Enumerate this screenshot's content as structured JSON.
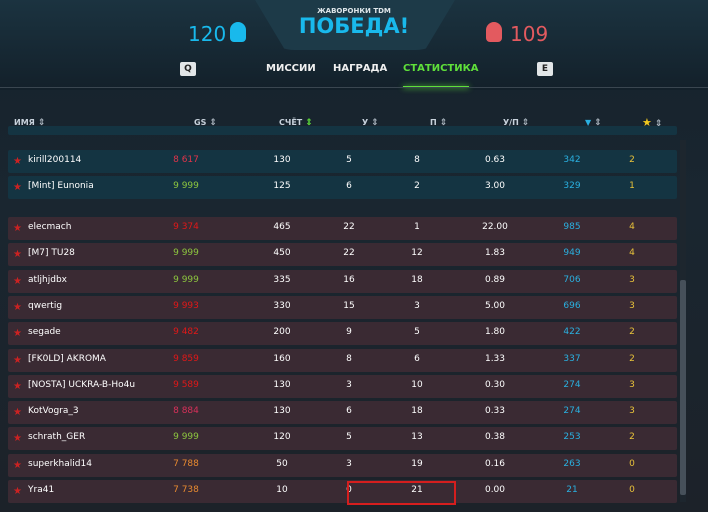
{
  "header": {
    "mode": "ЖАВОРОНКИ TDM",
    "result": "ПОБЕДА!",
    "ally_score": "120",
    "enemy_score": "109"
  },
  "tabs": {
    "prev_key": "Q",
    "next_key": "E",
    "items": [
      {
        "label": "МИССИИ"
      },
      {
        "label": "НАГРАДА"
      },
      {
        "label": "СТАТИСТИКА",
        "active": true
      }
    ]
  },
  "columns": {
    "name": "ИМЯ",
    "gs": "GS",
    "score": "СЧЁТ",
    "kills": "У",
    "deaths": "П",
    "kd": "У/П",
    "gem": "diamond-icon",
    "star": "star-icon"
  },
  "colors": {
    "ally": "#19b9ec",
    "enemy": "#e35a5f",
    "active_tab": "#5fe03a",
    "gem": "#2ab0e0",
    "star": "#e8c23a"
  },
  "ally_rows": [
    {
      "name": "kirill200114",
      "gs": "8 617",
      "gs_color": "#e0344a",
      "score": "130",
      "kills": "5",
      "deaths": "8",
      "kd": "0.63",
      "gems": "342",
      "stars": "2"
    },
    {
      "name": "[Mint] Eunonia",
      "gs": "9 999",
      "gs_color": "#8dc63f",
      "score": "125",
      "kills": "6",
      "deaths": "2",
      "kd": "3.00",
      "gems": "329",
      "stars": "1"
    }
  ],
  "enemy_rows": [
    {
      "name": "elecmach",
      "gs": "9 374",
      "gs_color": "#e01818",
      "score": "465",
      "kills": "22",
      "deaths": "1",
      "kd": "22.00",
      "gems": "985",
      "stars": "4"
    },
    {
      "name": "[M7] TU28",
      "gs": "9 999",
      "gs_color": "#8dc63f",
      "score": "450",
      "kills": "22",
      "deaths": "12",
      "kd": "1.83",
      "gems": "949",
      "stars": "4"
    },
    {
      "name": "atljhjdbx",
      "gs": "9 999",
      "gs_color": "#8dc63f",
      "score": "335",
      "kills": "16",
      "deaths": "18",
      "kd": "0.89",
      "gems": "706",
      "stars": "3"
    },
    {
      "name": "qwertig",
      "gs": "9 993",
      "gs_color": "#e01818",
      "score": "330",
      "kills": "15",
      "deaths": "3",
      "kd": "5.00",
      "gems": "696",
      "stars": "3"
    },
    {
      "name": "segade",
      "gs": "9 482",
      "gs_color": "#e01818",
      "score": "200",
      "kills": "9",
      "deaths": "5",
      "kd": "1.80",
      "gems": "422",
      "stars": "2"
    },
    {
      "name": "[FK0LD] AKROMA",
      "gs": "9 859",
      "gs_color": "#e01818",
      "score": "160",
      "kills": "8",
      "deaths": "6",
      "kd": "1.33",
      "gems": "337",
      "stars": "2"
    },
    {
      "name": "[NOSTA] UCKRA-B-Ho4u",
      "gs": "9 589",
      "gs_color": "#e01818",
      "score": "130",
      "kills": "3",
      "deaths": "10",
      "kd": "0.30",
      "gems": "274",
      "stars": "3"
    },
    {
      "name": "KotVogra_3",
      "gs": "8 884",
      "gs_color": "#d8305a",
      "score": "130",
      "kills": "6",
      "deaths": "18",
      "kd": "0.33",
      "gems": "274",
      "stars": "3"
    },
    {
      "name": "schrath_GER",
      "gs": "9 999",
      "gs_color": "#8dc63f",
      "score": "120",
      "kills": "5",
      "deaths": "13",
      "kd": "0.38",
      "gems": "253",
      "stars": "2"
    },
    {
      "name": "superkhalid14",
      "gs": "7 788",
      "gs_color": "#e88a30",
      "score": "50",
      "kills": "3",
      "deaths": "19",
      "kd": "0.16",
      "gems": "263",
      "stars": "0"
    },
    {
      "name": "Yra41",
      "gs": "7 738",
      "gs_color": "#e88a30",
      "score": "10",
      "kills": "0",
      "deaths": "21",
      "kd": "0.00",
      "gems": "21",
      "stars": "0"
    }
  ]
}
